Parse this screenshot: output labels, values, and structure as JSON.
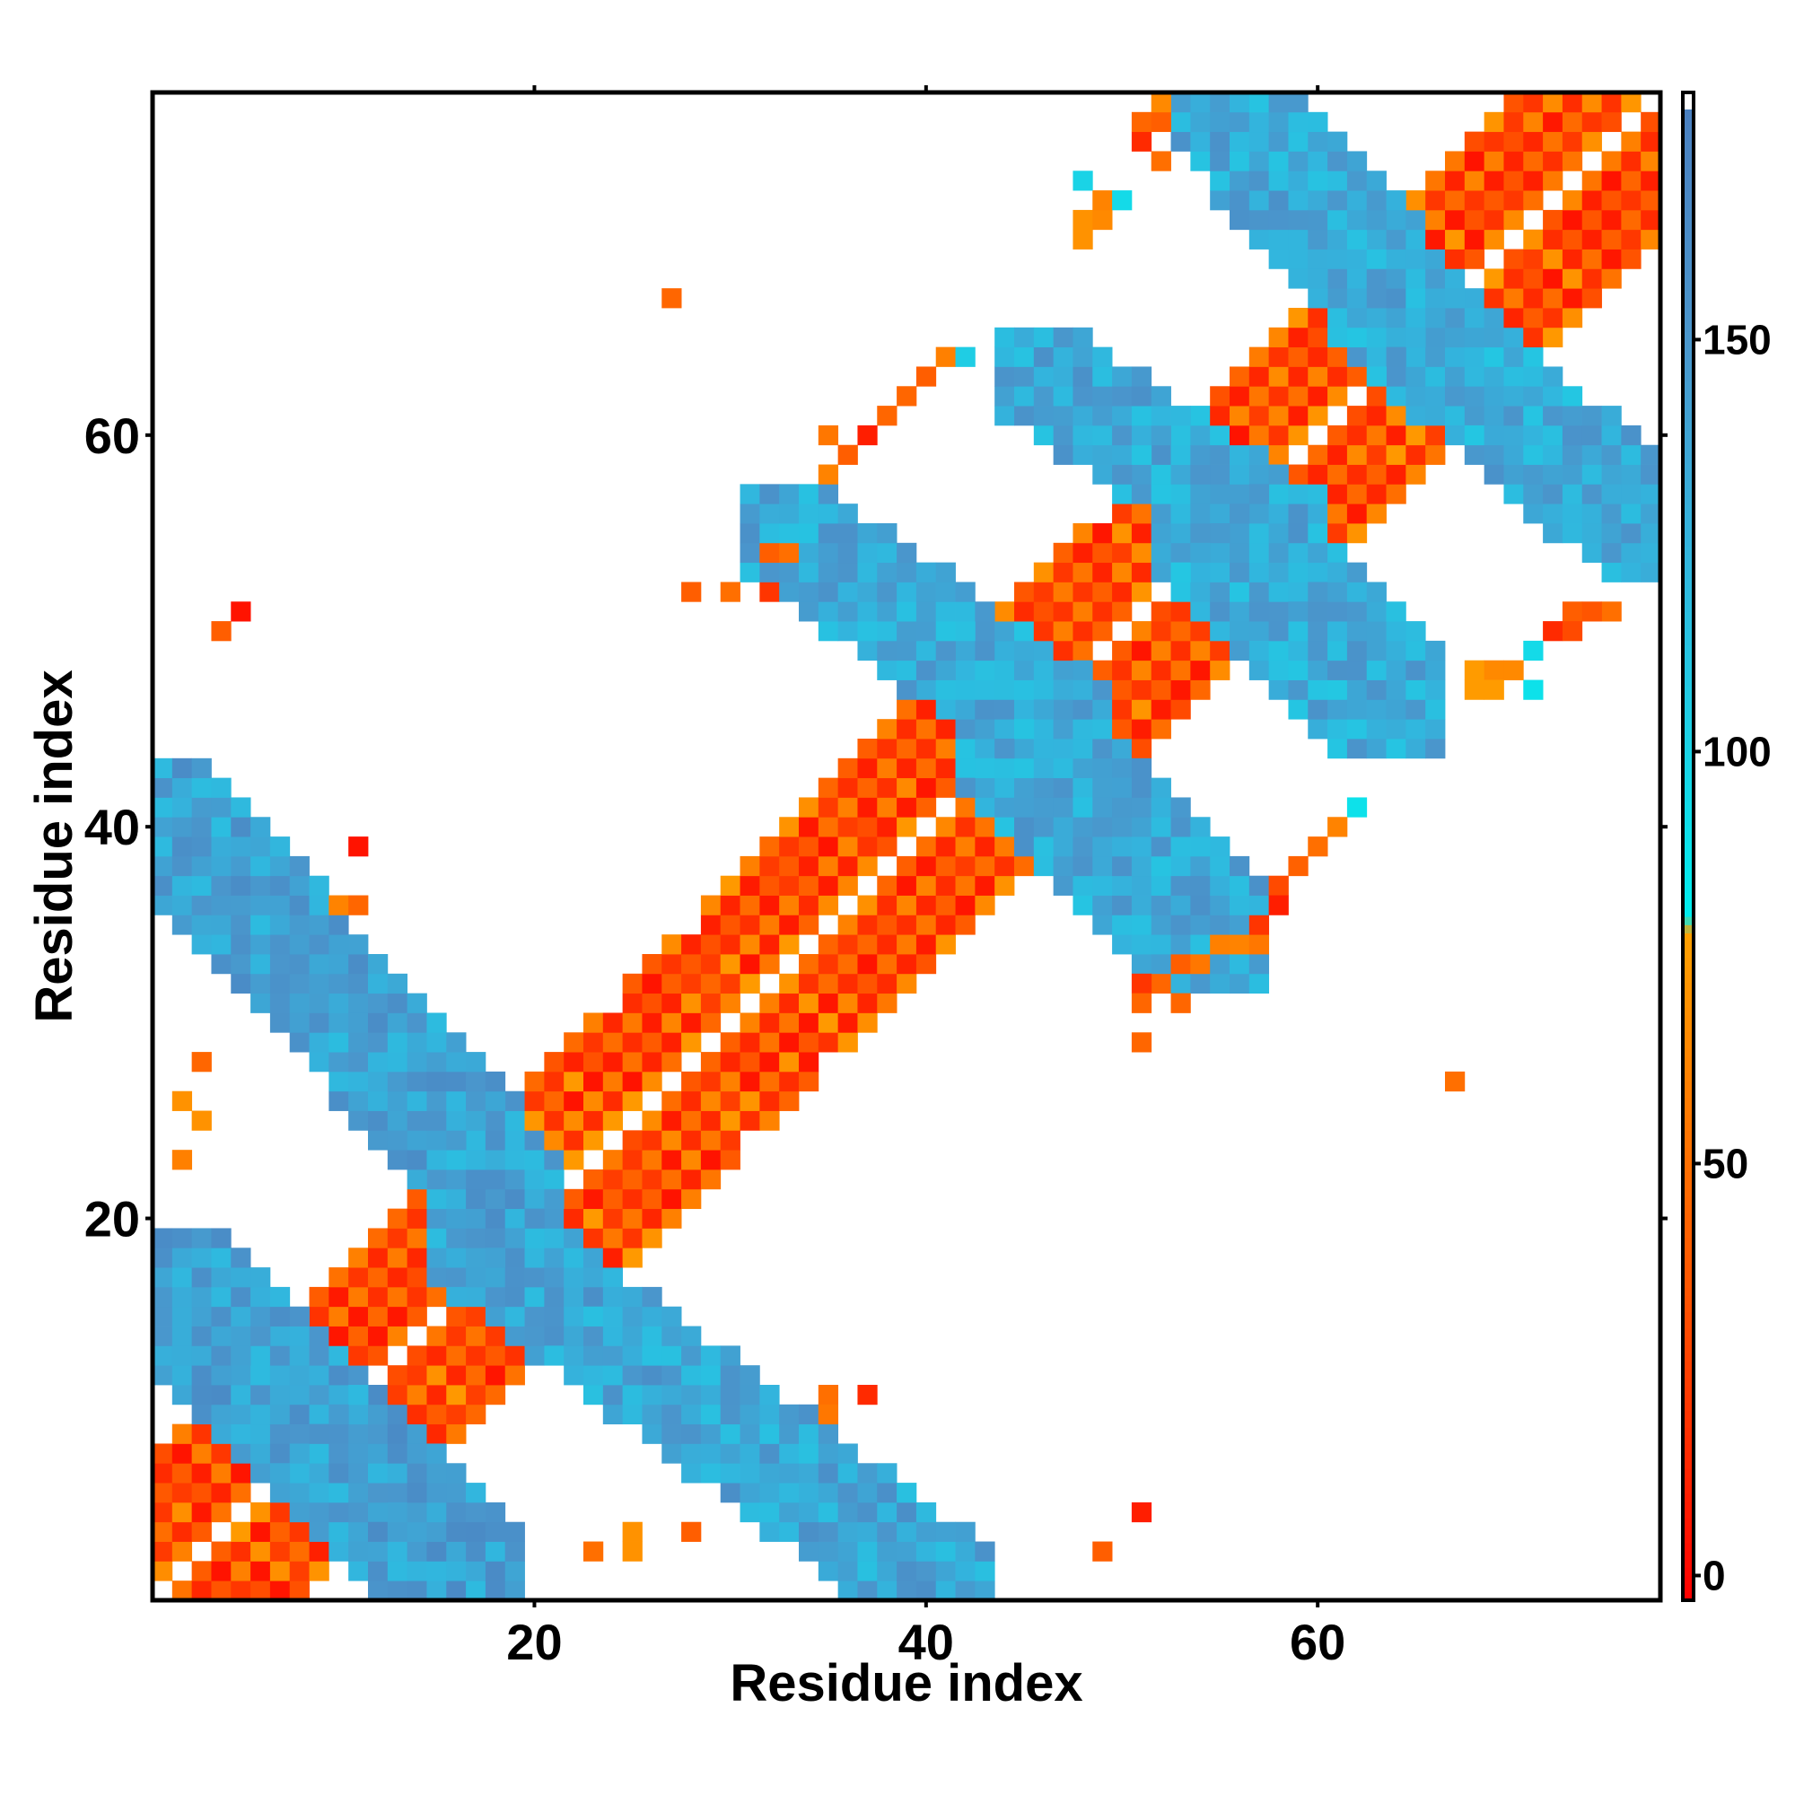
{
  "chart_data": {
    "type": "heatmap",
    "title": "",
    "xlabel": "Residue index",
    "ylabel": "Residue index",
    "xlim": [
      0.5,
      77.5
    ],
    "ylim": [
      0.5,
      77.5
    ],
    "x_ticks": [
      20,
      40,
      60
    ],
    "y_ticks": [
      20,
      40,
      60
    ],
    "grid": false,
    "colorbar": {
      "range": [
        -3,
        180
      ],
      "ticks": [
        0,
        50,
        100,
        150
      ],
      "stops": [
        {
          "value": -3,
          "color": "#ff0000"
        },
        {
          "value": 15,
          "color": "#ff2a00"
        },
        {
          "value": 35,
          "color": "#ff5500"
        },
        {
          "value": 55,
          "color": "#ff7700"
        },
        {
          "value": 78,
          "color": "#ffa000"
        },
        {
          "value": 80,
          "color": "#00eeee"
        },
        {
          "value": 100,
          "color": "#1ad3e6"
        },
        {
          "value": 125,
          "color": "#33b4dd"
        },
        {
          "value": 150,
          "color": "#4a96cc"
        },
        {
          "value": 178,
          "color": "#4a80c0"
        },
        {
          "value": 178.5,
          "color": "#ffffff"
        },
        {
          "value": 180,
          "color": "#ffffff"
        }
      ]
    },
    "segments": [
      {
        "x0": 1,
        "y0": 1,
        "x1": 77,
        "y1": 77,
        "hw": 3.5,
        "base": 12
      },
      {
        "x0": 1,
        "y0": 17,
        "x1": 17,
        "y1": 1,
        "hw": 2.5,
        "base": 140
      },
      {
        "x0": 17,
        "y0": 19,
        "x1": 41,
        "y1": 1,
        "hw": 2.5,
        "base": 135
      },
      {
        "x0": 1,
        "y0": 41,
        "x1": 19,
        "y1": 21,
        "hw": 2.5,
        "base": 138
      },
      {
        "x0": 33,
        "y0": 55,
        "x1": 47,
        "y1": 45,
        "hw": 2.5,
        "base": 132
      },
      {
        "x0": 44,
        "y0": 45,
        "x1": 55,
        "y1": 34,
        "hw": 2.5,
        "base": 132
      },
      {
        "x0": 46,
        "y0": 63,
        "x1": 58,
        "y1": 55,
        "hw": 2.5,
        "base": 132
      },
      {
        "x0": 54,
        "y0": 56,
        "x1": 64,
        "y1": 46,
        "hw": 2.5,
        "base": 130
      },
      {
        "x0": 55,
        "y0": 77,
        "x1": 65,
        "y1": 66,
        "hw": 2.5,
        "base": 132
      },
      {
        "x0": 63,
        "y0": 67,
        "x1": 77,
        "y1": 55,
        "hw": 2.5,
        "base": 130
      }
    ],
    "scattered_cells": [
      [
        4,
        50,
        40
      ],
      [
        5,
        51,
        5
      ],
      [
        3,
        28,
        45
      ],
      [
        2,
        26,
        70
      ],
      [
        3,
        25,
        70
      ],
      [
        2,
        23,
        60
      ],
      [
        11,
        39,
        5
      ],
      [
        11,
        36,
        45
      ],
      [
        10,
        36,
        62
      ],
      [
        35,
        60,
        55
      ],
      [
        35,
        58,
        62
      ],
      [
        36,
        59,
        40
      ],
      [
        37,
        60,
        10
      ],
      [
        38,
        61,
        45
      ],
      [
        39,
        62,
        45
      ],
      [
        40,
        63,
        40
      ],
      [
        41,
        64,
        60
      ],
      [
        42,
        64,
        105
      ],
      [
        27,
        67,
        45
      ],
      [
        32,
        54,
        40
      ],
      [
        33,
        54,
        50
      ],
      [
        30,
        52,
        50
      ],
      [
        32,
        52,
        20
      ],
      [
        28,
        52,
        40
      ],
      [
        48,
        70,
        70
      ],
      [
        48,
        71,
        70
      ],
      [
        49,
        71,
        65
      ],
      [
        49,
        72,
        62
      ],
      [
        48,
        73,
        100
      ],
      [
        50,
        72,
        95
      ],
      [
        51,
        75,
        15
      ],
      [
        51,
        76,
        45
      ],
      [
        52,
        76,
        40
      ],
      [
        52,
        77,
        65
      ],
      [
        52,
        74,
        50
      ],
      [
        62,
        41,
        90
      ],
      [
        61,
        40,
        62
      ],
      [
        60,
        39,
        50
      ],
      [
        59,
        38,
        42
      ],
      [
        58,
        37,
        30
      ],
      [
        58,
        36,
        10
      ],
      [
        57,
        35,
        20
      ],
      [
        55,
        34,
        60
      ],
      [
        56,
        34,
        62
      ],
      [
        57,
        34,
        55
      ],
      [
        53,
        33,
        40
      ],
      [
        54,
        33,
        55
      ],
      [
        51,
        32,
        20
      ],
      [
        52,
        32,
        45
      ],
      [
        51,
        31,
        45
      ],
      [
        53,
        31,
        45
      ],
      [
        51,
        29,
        45
      ],
      [
        67,
        27,
        50
      ],
      [
        75,
        51,
        50
      ],
      [
        73,
        51,
        40
      ],
      [
        74,
        51,
        35
      ],
      [
        72,
        50,
        15
      ],
      [
        73,
        50,
        30
      ],
      [
        71,
        49,
        95
      ],
      [
        68,
        48,
        75
      ],
      [
        69,
        48,
        65
      ],
      [
        70,
        48,
        65
      ],
      [
        68,
        47,
        75
      ],
      [
        69,
        47,
        75
      ],
      [
        71,
        47,
        90
      ],
      [
        35,
        11,
        50
      ],
      [
        37,
        11,
        15
      ],
      [
        35,
        10,
        55
      ],
      [
        51,
        5,
        10
      ],
      [
        49,
        3,
        40
      ],
      [
        28,
        4,
        40
      ],
      [
        25,
        4,
        70
      ],
      [
        25,
        3,
        70
      ],
      [
        23,
        3,
        50
      ]
    ]
  }
}
